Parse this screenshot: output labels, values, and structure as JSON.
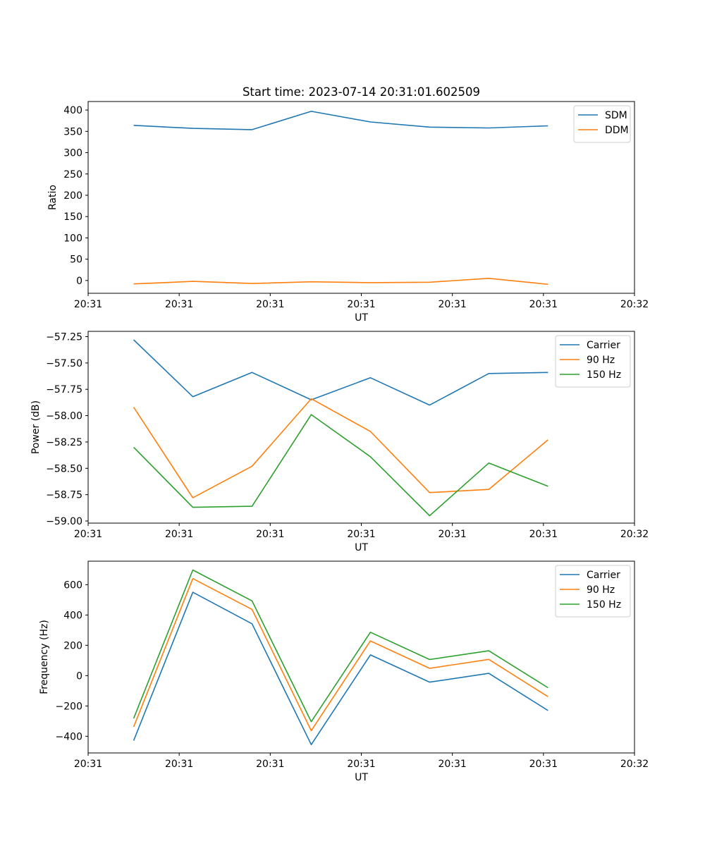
{
  "figure": {
    "title": "Start time: 2023-07-14 20:31:01.602509"
  },
  "colors": {
    "blue": "#1f77b4",
    "orange": "#ff7f0e",
    "green": "#2ca02c"
  },
  "chart_data": [
    {
      "type": "line",
      "title": "Start time: 2023-07-14 20:31:01.602509",
      "xlabel": "UT",
      "ylabel": "Ratio",
      "x": [
        0.5,
        1.15,
        1.8,
        2.45,
        3.1,
        3.75,
        4.4,
        5.05
      ],
      "xlim": [
        0,
        6
      ],
      "x_ticks": [
        0,
        1,
        2,
        3,
        4,
        5,
        6
      ],
      "x_tick_labels": [
        "20:31",
        "20:31",
        "20:31",
        "20:31",
        "20:31",
        "20:31",
        "20:32"
      ],
      "ylim": [
        -30,
        420
      ],
      "y_ticks": [
        0,
        50,
        100,
        150,
        200,
        250,
        300,
        350,
        400
      ],
      "y_tick_labels": [
        "0",
        "50",
        "100",
        "150",
        "200",
        "250",
        "300",
        "350",
        "400"
      ],
      "legend": "top-right",
      "grid": false,
      "series": [
        {
          "name": "SDM",
          "color": "#1f77b4",
          "values": [
            364,
            357,
            354,
            397,
            372,
            360,
            358,
            363
          ]
        },
        {
          "name": "DDM",
          "color": "#ff7f0e",
          "values": [
            -8,
            -2,
            -7,
            -3,
            -5,
            -4,
            5,
            -9
          ]
        }
      ]
    },
    {
      "type": "line",
      "title": "",
      "xlabel": "UT",
      "ylabel": "Power (dB)",
      "x": [
        0.5,
        1.15,
        1.8,
        2.45,
        3.1,
        3.75,
        4.4,
        5.05
      ],
      "xlim": [
        0,
        6
      ],
      "x_ticks": [
        0,
        1,
        2,
        3,
        4,
        5,
        6
      ],
      "x_tick_labels": [
        "20:31",
        "20:31",
        "20:31",
        "20:31",
        "20:31",
        "20:31",
        "20:32"
      ],
      "ylim": [
        -59.02,
        -57.2
      ],
      "y_ticks": [
        -59.0,
        -58.75,
        -58.5,
        -58.25,
        -58.0,
        -57.75,
        -57.5,
        -57.25
      ],
      "y_tick_labels": [
        "−59.00",
        "−58.75",
        "−58.50",
        "−58.25",
        "−58.00",
        "−57.75",
        "−57.50",
        "−57.25"
      ],
      "legend": "top-right",
      "grid": false,
      "series": [
        {
          "name": "Carrier",
          "color": "#1f77b4",
          "values": [
            -57.28,
            -57.82,
            -57.59,
            -57.85,
            -57.64,
            -57.9,
            -57.6,
            -57.59
          ]
        },
        {
          "name": "90 Hz",
          "color": "#ff7f0e",
          "values": [
            -57.92,
            -58.78,
            -58.48,
            -57.84,
            -58.15,
            -58.73,
            -58.7,
            -58.23
          ]
        },
        {
          "name": "150 Hz",
          "color": "#2ca02c",
          "values": [
            -58.3,
            -58.87,
            -58.86,
            -57.99,
            -58.39,
            -58.95,
            -58.45,
            -58.67
          ]
        }
      ]
    },
    {
      "type": "line",
      "title": "",
      "xlabel": "UT",
      "ylabel": "Frequency (Hz)",
      "x": [
        0.5,
        1.15,
        1.8,
        2.45,
        3.1,
        3.75,
        4.4,
        5.05
      ],
      "xlim": [
        0,
        6
      ],
      "x_ticks": [
        0,
        1,
        2,
        3,
        4,
        5,
        6
      ],
      "x_tick_labels": [
        "20:31",
        "20:31",
        "20:31",
        "20:31",
        "20:31",
        "20:31",
        "20:32"
      ],
      "ylim": [
        -510,
        755
      ],
      "y_ticks": [
        -400,
        -200,
        0,
        200,
        400,
        600
      ],
      "y_tick_labels": [
        "−400",
        "−200",
        "0",
        "200",
        "400",
        "600"
      ],
      "legend": "top-right",
      "grid": false,
      "series": [
        {
          "name": "Carrier",
          "color": "#1f77b4",
          "values": [
            -428,
            550,
            342,
            -455,
            137,
            -43,
            15,
            -230
          ]
        },
        {
          "name": "90 Hz",
          "color": "#ff7f0e",
          "values": [
            -338,
            640,
            437,
            -363,
            229,
            48,
            107,
            -139
          ]
        },
        {
          "name": "150 Hz",
          "color": "#2ca02c",
          "values": [
            -282,
            697,
            493,
            -304,
            286,
            106,
            164,
            -80
          ]
        }
      ]
    }
  ]
}
